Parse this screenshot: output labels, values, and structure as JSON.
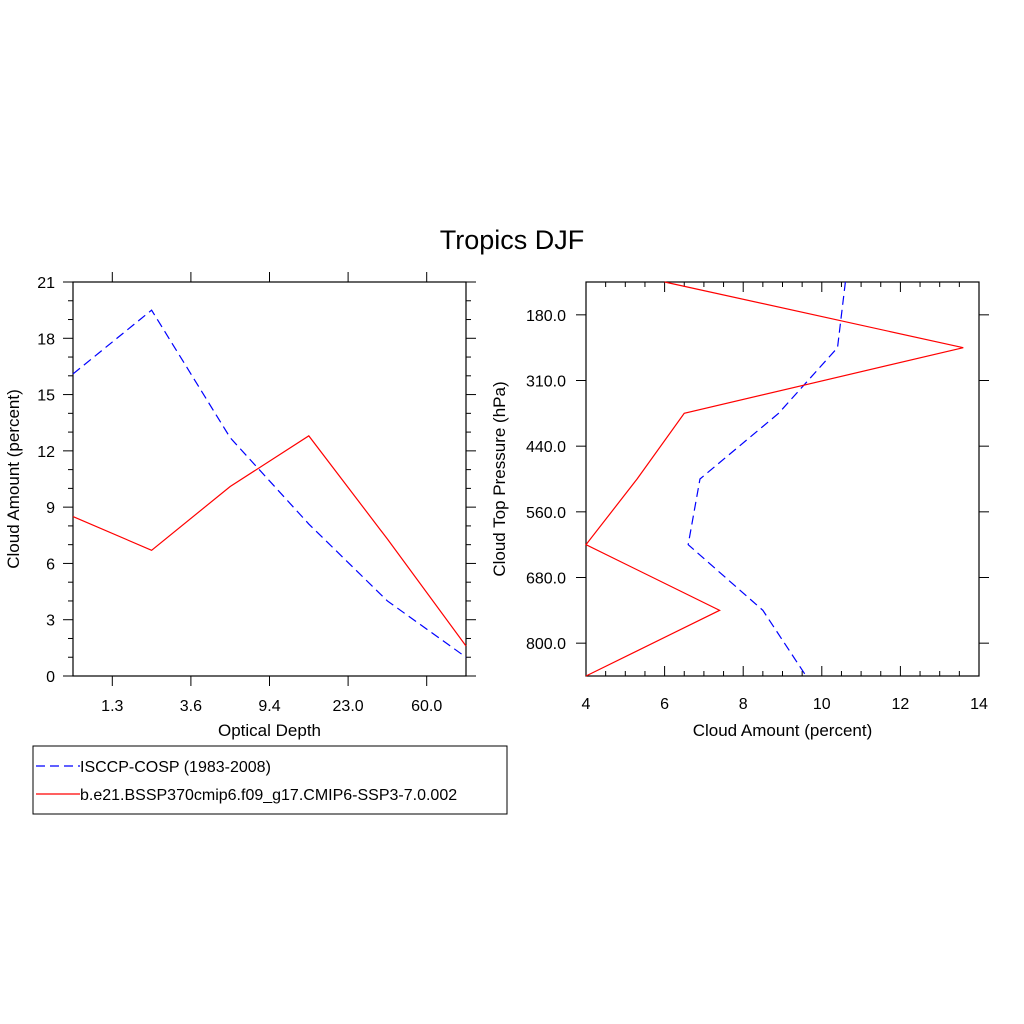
{
  "title": "Tropics DJF",
  "colors": {
    "observation": "#0000ff",
    "model": "#ff0000",
    "axes": "#000000"
  },
  "legend": {
    "entries": [
      {
        "label": "ISCCP-COSP (1983-2008)",
        "style": "dashed",
        "color": "#0000ff"
      },
      {
        "label": "b.e21.BSSP370cmip6.f09_g17.CMIP6-SSP3-7.0.002",
        "style": "solid",
        "color": "#ff0000"
      }
    ],
    "placement": "bottom-left"
  },
  "chart_data": [
    {
      "type": "line",
      "xlabel": "Optical Depth",
      "ylabel": "Cloud Amount (percent)",
      "xticks": [
        "1.3",
        "3.6",
        "9.4",
        "23.0",
        "60.0"
      ],
      "xbins": [
        0,
        1,
        2,
        3,
        4,
        5,
        6,
        7,
        8,
        9
      ],
      "ylim": [
        0,
        21
      ],
      "yticks": [
        0,
        3,
        6,
        9,
        12,
        15,
        18,
        21
      ],
      "grid": false,
      "series": [
        {
          "name": "ISCCP-COSP (1983-2008)",
          "style": "dashed",
          "x": [
            0,
            2,
            4,
            6,
            8,
            10
          ],
          "y": [
            16.1,
            19.5,
            12.7,
            8.1,
            4.0,
            1.0
          ]
        },
        {
          "name": "b.e21.BSSP370cmip6.f09_g17.CMIP6-SSP3-7.0.002",
          "style": "solid",
          "x": [
            0,
            2,
            4,
            6,
            8,
            10
          ],
          "y": [
            8.5,
            6.7,
            10.1,
            12.8,
            7.3,
            1.6
          ]
        }
      ]
    },
    {
      "type": "line",
      "xlabel": "Cloud Amount (percent)",
      "ylabel": "Cloud Top Pressure (hPa)",
      "xlim": [
        4,
        14
      ],
      "xticks": [
        4,
        6,
        8,
        10,
        12,
        14
      ],
      "yticks": [
        "180.0",
        "310.0",
        "440.0",
        "560.0",
        "680.0",
        "800.0"
      ],
      "y_reversed": true,
      "grid": false,
      "series": [
        {
          "name": "ISCCP-COSP (1983-2008)",
          "style": "dashed",
          "x": [
            10.6,
            10.4,
            8.9,
            6.9,
            6.6,
            8.5,
            9.6
          ],
          "y": [
            0,
            1,
            2,
            3,
            4,
            5,
            6
          ]
        },
        {
          "name": "b.e21.BSSP370cmip6.f09_g17.CMIP6-SSP3-7.0.002",
          "style": "solid",
          "x": [
            6.0,
            13.6,
            6.5,
            5.3,
            4.0,
            7.4,
            4.0
          ],
          "y": [
            0,
            1,
            2,
            3,
            4,
            5,
            6
          ]
        }
      ]
    }
  ]
}
